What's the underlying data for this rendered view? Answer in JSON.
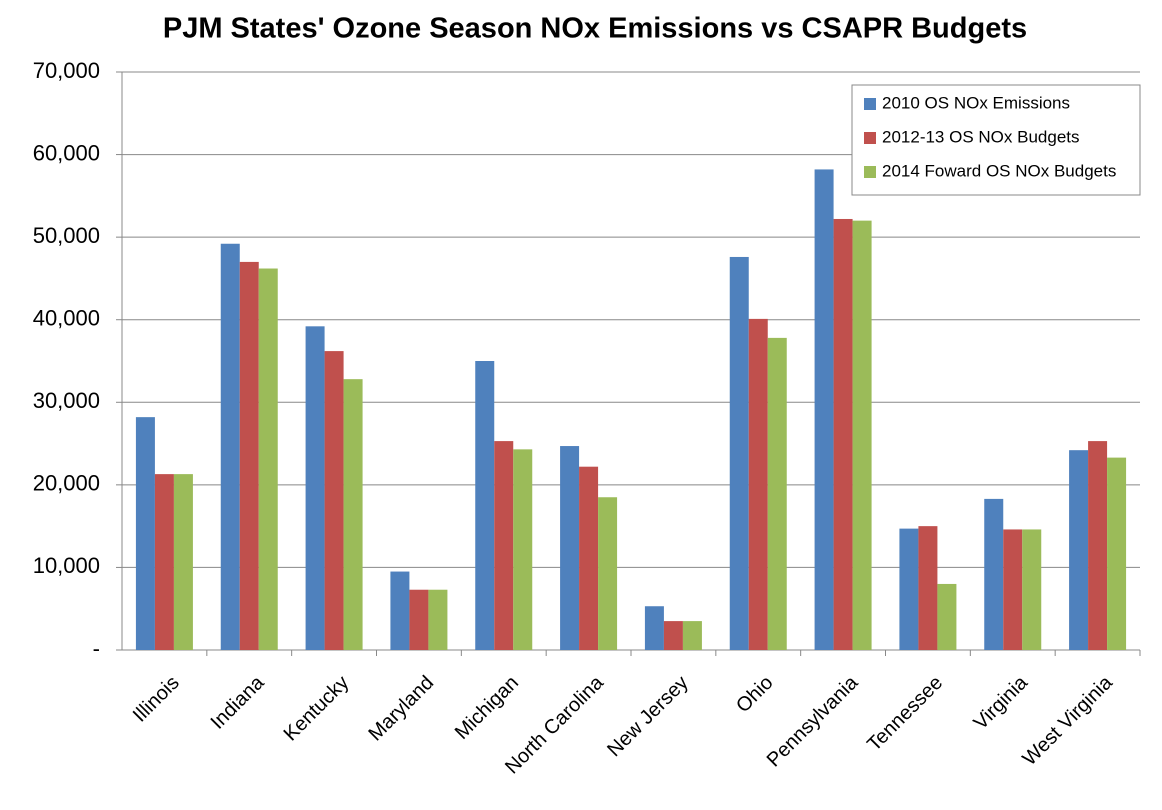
{
  "chart_data": {
    "type": "bar",
    "title": "PJM States' Ozone Season NOx Emissions vs CSAPR Budgets",
    "categories": [
      "Illinois",
      "Indiana",
      "Kentucky",
      "Maryland",
      "Michigan",
      "North Carolina",
      "New Jersey",
      "Ohio",
      "Pennsylvania",
      "Tennessee",
      "Virginia",
      "West Virginia"
    ],
    "series": [
      {
        "name": "2010 OS NOx Emissions",
        "color": "#4f81bd",
        "values": [
          28200,
          49200,
          39200,
          9500,
          35000,
          24700,
          5300,
          47600,
          58200,
          14700,
          18300,
          24200
        ]
      },
      {
        "name": "2012-13 OS NOx Budgets",
        "color": "#c0504d",
        "values": [
          21300,
          47000,
          36200,
          7300,
          25300,
          22200,
          3500,
          40100,
          52200,
          15000,
          14600,
          25300
        ]
      },
      {
        "name": "2014 Foward OS NOx Budgets",
        "color": "#9bbb59",
        "values": [
          21300,
          46200,
          32800,
          7300,
          24300,
          18500,
          3500,
          37800,
          52000,
          8000,
          14600,
          23300
        ]
      }
    ],
    "ylim": [
      0,
      70000
    ],
    "yticks": [
      {
        "value": 0,
        "label": "-"
      },
      {
        "value": 10000,
        "label": "10,000"
      },
      {
        "value": 20000,
        "label": "20,000"
      },
      {
        "value": 30000,
        "label": "30,000"
      },
      {
        "value": 40000,
        "label": "40,000"
      },
      {
        "value": 50000,
        "label": "50,000"
      },
      {
        "value": 60000,
        "label": "60,000"
      },
      {
        "value": 70000,
        "label": "70,000"
      }
    ],
    "grid": true,
    "legend": "upper-right"
  }
}
